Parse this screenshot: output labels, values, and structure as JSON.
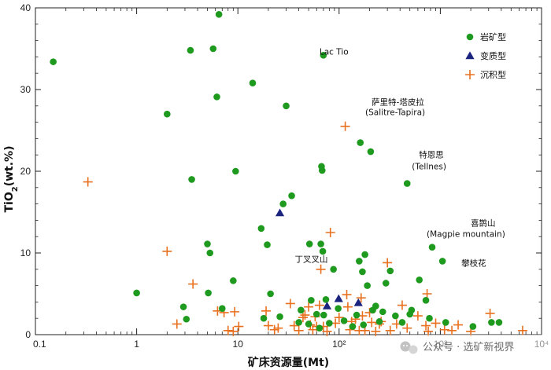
{
  "chart_data": {
    "type": "scatter",
    "x_scale": "log",
    "xlim": [
      0.1,
      10000
    ],
    "ylim": [
      0,
      40
    ],
    "xlabel": "矿床资源量(Mt)",
    "ylabel": "TiO2(wt.%)",
    "x_ticks": [
      {
        "value": 0.1,
        "label": "0.1"
      },
      {
        "value": 1,
        "label": "1"
      },
      {
        "value": 10,
        "label": "10"
      },
      {
        "value": 100,
        "label": "10²"
      },
      {
        "value": 1000,
        "label": "10³"
      },
      {
        "value": 10000,
        "label": "10⁴"
      }
    ],
    "y_ticks": [
      0,
      10,
      20,
      30,
      40
    ],
    "grid": false,
    "legend": {
      "placement": "top-right"
    },
    "series": [
      {
        "name": "岩矿型",
        "marker": "circle",
        "color": "#1e9a1e",
        "points": [
          [
            0.15,
            33.4
          ],
          [
            1.0,
            5.1
          ],
          [
            2.0,
            27.0
          ],
          [
            2.9,
            3.4
          ],
          [
            3.1,
            1.9
          ],
          [
            3.4,
            34.8
          ],
          [
            3.5,
            19.0
          ],
          [
            5.0,
            11.1
          ],
          [
            5.1,
            5.1
          ],
          [
            5.3,
            10.0
          ],
          [
            5.7,
            35.0
          ],
          [
            6.2,
            29.1
          ],
          [
            6.5,
            39.2
          ],
          [
            7.0,
            3.2
          ],
          [
            9.0,
            6.6
          ],
          [
            9.5,
            20.0
          ],
          [
            14.0,
            30.8
          ],
          [
            17.0,
            13.0
          ],
          [
            18.0,
            2.0
          ],
          [
            19.5,
            11.0
          ],
          [
            21.0,
            5.0
          ],
          [
            26.0,
            2.2
          ],
          [
            28.0,
            16.0
          ],
          [
            30.0,
            28.0
          ],
          [
            34.0,
            17.0
          ],
          [
            40.0,
            1.5
          ],
          [
            42.0,
            3.0
          ],
          [
            50.0,
            1.3
          ],
          [
            51.0,
            11.1
          ],
          [
            53.0,
            4.2
          ],
          [
            60.0,
            2.5
          ],
          [
            64.0,
            0.8
          ],
          [
            66.0,
            11.1
          ],
          [
            67.0,
            20.6
          ],
          [
            68.0,
            20.1
          ],
          [
            69.0,
            10.2
          ],
          [
            70.0,
            34.2
          ],
          [
            70.5,
            2.4
          ],
          [
            74.0,
            4.3
          ],
          [
            80.0,
            1.4
          ],
          [
            88.0,
            8.0
          ],
          [
            98.0,
            3.2
          ],
          [
            112.0,
            1.7
          ],
          [
            136.0,
            1.0
          ],
          [
            149.0,
            2.4
          ],
          [
            158.0,
            9.0
          ],
          [
            162.0,
            23.5
          ],
          [
            170.0,
            7.7
          ],
          [
            174.0,
            1.2
          ],
          [
            180.0,
            9.8
          ],
          [
            190.0,
            6.0
          ],
          [
            205.0,
            22.4
          ],
          [
            215.0,
            3.0
          ],
          [
            230.0,
            3.5
          ],
          [
            250.0,
            1.6
          ],
          [
            270.0,
            2.8
          ],
          [
            290.0,
            6.3
          ],
          [
            320.0,
            7.8
          ],
          [
            360.0,
            2.3
          ],
          [
            420.0,
            1.5
          ],
          [
            470.0,
            18.5
          ],
          [
            500.0,
            2.5
          ],
          [
            520.0,
            3.0
          ],
          [
            620.0,
            6.7
          ],
          [
            720.0,
            4.2
          ],
          [
            780.0,
            2.0
          ],
          [
            830.0,
            10.7
          ],
          [
            1050.0,
            9.0
          ],
          [
            1130.0,
            1.5
          ],
          [
            2100.0,
            1.0
          ],
          [
            3200.0,
            1.5
          ],
          [
            3800.0,
            1.5
          ]
        ]
      },
      {
        "name": "变质型",
        "marker": "triangle",
        "color": "#1a237e",
        "points": [
          [
            26.0,
            14.9
          ],
          [
            76.0,
            3.5
          ],
          [
            99.0,
            4.4
          ],
          [
            155.0,
            3.9
          ]
        ]
      },
      {
        "name": "沉积型",
        "marker": "plus",
        "color": "#e8701e",
        "points": [
          [
            0.33,
            18.7
          ],
          [
            2.0,
            10.2
          ],
          [
            2.5,
            1.3
          ],
          [
            3.6,
            6.2
          ],
          [
            6.3,
            2.9
          ],
          [
            7.3,
            2.7
          ],
          [
            8.0,
            0.5
          ],
          [
            9.0,
            0.4
          ],
          [
            9.3,
            2.8
          ],
          [
            10.2,
            1.0
          ],
          [
            19.0,
            2.9
          ],
          [
            20.0,
            1.1
          ],
          [
            23.0,
            0.6
          ],
          [
            25.0,
            0.8
          ],
          [
            33.0,
            3.8
          ],
          [
            36.0,
            1.1
          ],
          [
            40.0,
            0.5
          ],
          [
            44.0,
            2.1
          ],
          [
            46.0,
            2.4
          ],
          [
            50.0,
            3.4
          ],
          [
            52.0,
            1.2
          ],
          [
            55.0,
            0.6
          ],
          [
            58.0,
            2.2
          ],
          [
            60.0,
            1.0
          ],
          [
            64.0,
            3.6
          ],
          [
            66.0,
            8.0
          ],
          [
            70.0,
            1.0
          ],
          [
            76.0,
            0.4
          ],
          [
            82.0,
            12.5
          ],
          [
            92.0,
            1.4
          ],
          [
            100.0,
            2.1
          ],
          [
            115.0,
            25.5
          ],
          [
            119.0,
            4.9
          ],
          [
            122.0,
            3.4
          ],
          [
            128.0,
            0.6
          ],
          [
            133.0,
            1.6
          ],
          [
            145.0,
            1.9
          ],
          [
            158.0,
            0.5
          ],
          [
            165.0,
            4.5
          ],
          [
            170.0,
            2.3
          ],
          [
            180.0,
            0.5
          ],
          [
            200.0,
            2.7
          ],
          [
            210.0,
            1.5
          ],
          [
            230.0,
            0.4
          ],
          [
            250.0,
            1.3
          ],
          [
            260.0,
            1.6
          ],
          [
            300.0,
            8.8
          ],
          [
            320.0,
            0.5
          ],
          [
            370.0,
            1.3
          ],
          [
            420.0,
            3.6
          ],
          [
            470.0,
            0.8
          ],
          [
            600.0,
            2.3
          ],
          [
            720.0,
            1.1
          ],
          [
            740.0,
            5.0
          ],
          [
            760.0,
            0.4
          ],
          [
            900.0,
            1.4
          ],
          [
            1100.0,
            0.6
          ],
          [
            1300.0,
            0.5
          ],
          [
            1500.0,
            1.2
          ],
          [
            2000.0,
            0.4
          ],
          [
            3100.0,
            2.6
          ],
          [
            6500.0,
            0.5
          ]
        ]
      }
    ],
    "annotations": [
      {
        "text": "Lac Tio",
        "x": 70,
        "y": 34.2
      },
      {
        "text": "萨里特-塔皮拉",
        "x": 160,
        "y": 23.5
      },
      {
        "text": "(Salitre-Tapira)",
        "x": 160,
        "y": 23.5
      },
      {
        "text": "特恩思",
        "x": 470,
        "y": 18.5
      },
      {
        "text": "(Tellnes)",
        "x": 470,
        "y": 18.5
      },
      {
        "text": "喜鹊山",
        "x": 830,
        "y": 10.7
      },
      {
        "text": "(Magpie mountain)",
        "x": 830,
        "y": 10.7
      },
      {
        "text": "攀枝花",
        "x": 1050,
        "y": 9.0
      },
      {
        "text": "丁叉叉山",
        "x": 76,
        "y": 3.5
      }
    ]
  },
  "watermark": {
    "text": "公众号 · 选矿新视界"
  }
}
